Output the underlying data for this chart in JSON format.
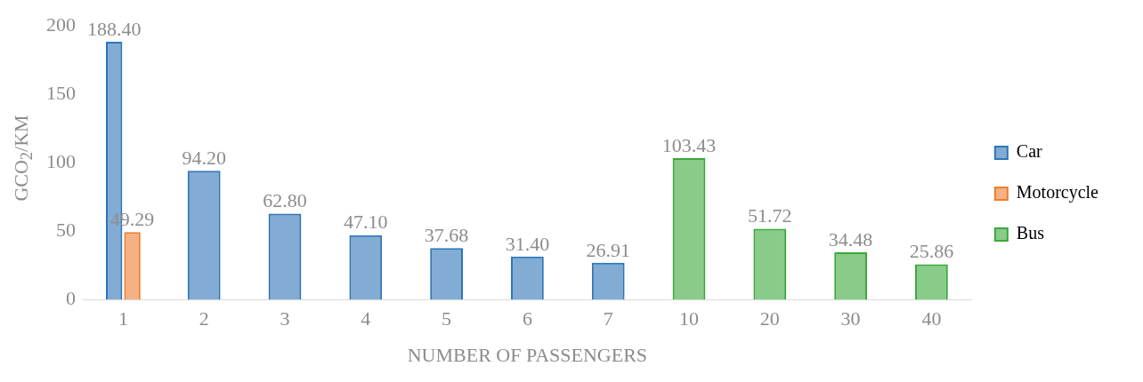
{
  "chart_data": {
    "type": "bar",
    "xlabel": "NUMBER OF PASSENGERS",
    "ylabel": "GCO$_{2}$/KM",
    "categories": [
      "1",
      "2",
      "3",
      "4",
      "5",
      "6",
      "7",
      "10",
      "20",
      "30",
      "40"
    ],
    "series": [
      {
        "name": "Car",
        "color": "#2e75b6",
        "values": [
          188.4,
          94.2,
          62.8,
          47.1,
          37.68,
          31.4,
          26.91,
          null,
          null,
          null,
          null
        ],
        "value_labels": [
          "188.40",
          "94.20",
          "62.80",
          "47.10",
          "37.68",
          "31.40",
          "26.91",
          null,
          null,
          null,
          null
        ]
      },
      {
        "name": "Motorcycle",
        "color": "#ed7d31",
        "values": [
          49.29,
          null,
          null,
          null,
          null,
          null,
          null,
          null,
          null,
          null,
          null
        ],
        "value_labels": [
          "49.29",
          null,
          null,
          null,
          null,
          null,
          null,
          null,
          null,
          null,
          null
        ]
      },
      {
        "name": "Bus",
        "color": "#3aa83a",
        "values": [
          null,
          null,
          null,
          null,
          null,
          null,
          null,
          103.43,
          51.72,
          34.48,
          25.86
        ],
        "value_labels": [
          null,
          null,
          null,
          null,
          null,
          null,
          null,
          "103.43",
          "51.72",
          "34.48",
          "25.86"
        ]
      }
    ],
    "ylim": [
      0,
      200
    ],
    "yticks": [
      0,
      50,
      100,
      150,
      200
    ],
    "grid": false,
    "legend": "right"
  }
}
